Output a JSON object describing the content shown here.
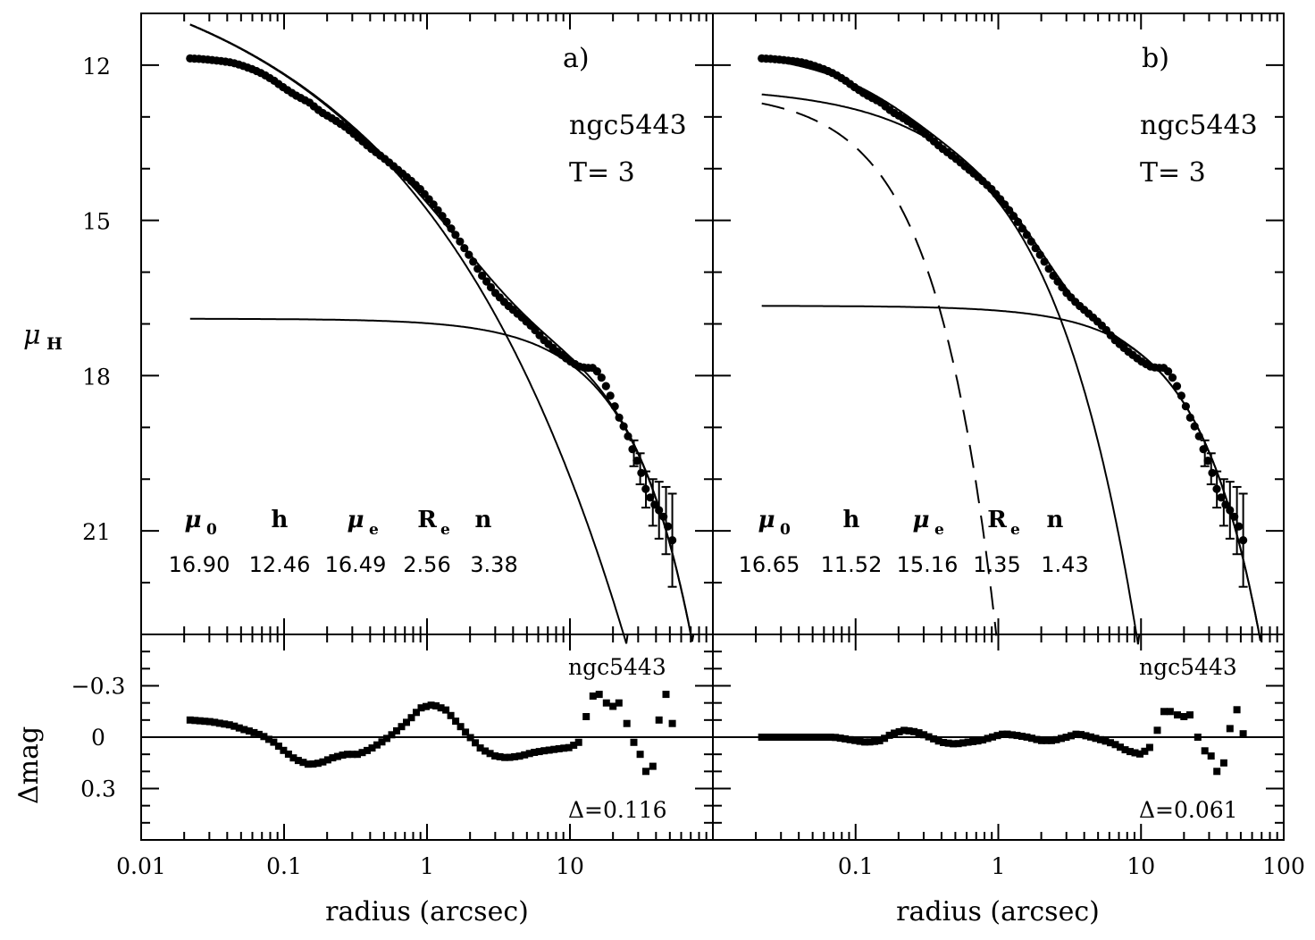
{
  "chart_data": [
    {
      "panel": "a",
      "type": "scatter",
      "title": "a)",
      "galaxy": "ngc5443",
      "type_label": "T= 3",
      "xlabel": "radius (arcsec)",
      "ylabel": "μ",
      "ylabel_sub": "H",
      "x_scale": "log",
      "xlim": [
        0.01,
        100
      ],
      "ylim": [
        23,
        11
      ],
      "x_ticks": [
        0.01,
        0.1,
        1,
        10
      ],
      "x_tick_labels": [
        "0.01",
        "0.1",
        "1",
        "10"
      ],
      "y_ticks": [
        12,
        15,
        18,
        21
      ],
      "y_tick_labels": [
        "12",
        "15",
        "18",
        "21"
      ],
      "params": {
        "headers": [
          "μ",
          "h",
          "μ",
          "R",
          "n"
        ],
        "header_subs": [
          "0",
          "",
          "e",
          "e",
          ""
        ],
        "values": [
          "16.90",
          "12.46",
          "16.49",
          "2.56",
          "3.38"
        ]
      },
      "model": {
        "disk": {
          "mu0": 16.9,
          "h": 12.46,
          "line": "solid"
        },
        "bulge": {
          "mue": 16.49,
          "re": 2.56,
          "n": 3.38,
          "line": "solid"
        }
      },
      "data_points": [
        [
          0.022,
          11.87
        ],
        [
          0.026,
          11.88
        ],
        [
          0.031,
          11.9
        ],
        [
          0.036,
          11.92
        ],
        [
          0.043,
          11.95
        ],
        [
          0.05,
          12.0
        ],
        [
          0.06,
          12.08
        ],
        [
          0.07,
          12.16
        ],
        [
          0.085,
          12.3
        ],
        [
          0.1,
          12.44
        ],
        [
          0.12,
          12.58
        ],
        [
          0.15,
          12.72
        ],
        [
          0.18,
          12.9
        ],
        [
          0.22,
          13.04
        ],
        [
          0.27,
          13.2
        ],
        [
          0.33,
          13.4
        ],
        [
          0.4,
          13.6
        ],
        [
          0.5,
          13.8
        ],
        [
          0.6,
          13.98
        ],
        [
          0.75,
          14.2
        ],
        [
          0.9,
          14.4
        ],
        [
          1.1,
          14.68
        ],
        [
          1.35,
          15.0
        ],
        [
          1.6,
          15.3
        ],
        [
          2.0,
          15.7
        ],
        [
          2.4,
          16.05
        ],
        [
          3.0,
          16.4
        ],
        [
          3.6,
          16.62
        ],
        [
          4.5,
          16.85
        ],
        [
          5.5,
          17.07
        ],
        [
          6.5,
          17.3
        ],
        [
          8.0,
          17.52
        ],
        [
          10.0,
          17.72
        ],
        [
          11.5,
          17.82
        ],
        [
          13.0,
          17.85
        ],
        [
          14.5,
          17.85
        ],
        [
          16.0,
          17.95
        ],
        [
          18.0,
          18.22
        ],
        [
          20.0,
          18.5
        ],
        [
          22.0,
          18.8
        ],
        [
          25.0,
          19.1
        ],
        [
          28.0,
          19.5
        ],
        [
          31.0,
          19.8
        ],
        [
          34.0,
          20.2
        ],
        [
          38.0,
          20.45
        ],
        [
          42.0,
          20.6
        ],
        [
          47.0,
          20.8
        ],
        [
          52.0,
          21.18
        ]
      ],
      "error_points": [
        [
          28,
          19.5,
          0.25
        ],
        [
          31,
          19.8,
          0.3
        ],
        [
          34,
          20.2,
          0.35
        ],
        [
          38,
          20.45,
          0.45
        ],
        [
          42,
          20.6,
          0.55
        ],
        [
          47,
          20.8,
          0.65
        ],
        [
          52,
          21.18,
          0.9
        ]
      ],
      "residuals": {
        "ylabel": "Δmag",
        "galaxy": "ngc5443",
        "ylim": [
          0.6,
          -0.6
        ],
        "y_ticks": [
          -0.3,
          0,
          0.3
        ],
        "y_tick_labels": [
          "−0.3",
          "0",
          "0.3"
        ],
        "delta_label": "Δ=0.116",
        "points": [
          [
            0.022,
            -0.1
          ],
          [
            0.026,
            -0.095
          ],
          [
            0.031,
            -0.09
          ],
          [
            0.036,
            -0.08
          ],
          [
            0.043,
            -0.07
          ],
          [
            0.05,
            -0.05
          ],
          [
            0.06,
            -0.03
          ],
          [
            0.07,
            -0.01
          ],
          [
            0.085,
            0.03
          ],
          [
            0.1,
            0.08
          ],
          [
            0.12,
            0.13
          ],
          [
            0.15,
            0.16
          ],
          [
            0.18,
            0.15
          ],
          [
            0.22,
            0.12
          ],
          [
            0.27,
            0.1
          ],
          [
            0.33,
            0.1
          ],
          [
            0.4,
            0.07
          ],
          [
            0.5,
            0.02
          ],
          [
            0.6,
            -0.03
          ],
          [
            0.75,
            -0.1
          ],
          [
            0.9,
            -0.17
          ],
          [
            1.1,
            -0.19
          ],
          [
            1.35,
            -0.16
          ],
          [
            1.6,
            -0.09
          ],
          [
            2.0,
            0.0
          ],
          [
            2.4,
            0.07
          ],
          [
            3.0,
            0.11
          ],
          [
            3.6,
            0.12
          ],
          [
            4.5,
            0.11
          ],
          [
            5.5,
            0.09
          ],
          [
            6.5,
            0.08
          ],
          [
            8.0,
            0.07
          ],
          [
            10.0,
            0.06
          ],
          [
            11.5,
            0.03
          ],
          [
            13.0,
            -0.12
          ],
          [
            14.5,
            -0.24
          ],
          [
            16.0,
            -0.25
          ],
          [
            18.0,
            -0.2
          ],
          [
            20.0,
            -0.18
          ],
          [
            22.0,
            -0.2
          ],
          [
            25.0,
            -0.08
          ],
          [
            28.0,
            0.03
          ],
          [
            31.0,
            0.1
          ],
          [
            34.0,
            0.2
          ],
          [
            38.0,
            0.17
          ],
          [
            42.0,
            -0.1
          ],
          [
            47.0,
            -0.25
          ],
          [
            52.0,
            -0.08
          ]
        ]
      }
    },
    {
      "panel": "b",
      "type": "scatter",
      "title": "b)",
      "galaxy": "ngc5443",
      "type_label": "T= 3",
      "xlabel": "radius (arcsec)",
      "x_scale": "log",
      "xlim": [
        0.01,
        100
      ],
      "ylim": [
        23,
        11
      ],
      "x_ticks": [
        0.1,
        1,
        10,
        100
      ],
      "x_tick_labels": [
        "0.1",
        "1",
        "10",
        "100"
      ],
      "params": {
        "headers": [
          "μ",
          "h",
          "μ",
          "R",
          "n"
        ],
        "header_subs": [
          "0",
          "",
          "e",
          "e",
          ""
        ],
        "values": [
          "16.65",
          "11.52",
          "15.16",
          "1.35",
          "1.43"
        ]
      },
      "model": {
        "disk": {
          "mu0": 16.65,
          "h": 11.52,
          "line": "solid"
        },
        "bulge": {
          "mue": 15.16,
          "re": 1.35,
          "n": 1.43,
          "line": "solid"
        },
        "nuclear": {
          "mu0": 12.5,
          "scale_arcsec": 0.1,
          "line": "dashed"
        }
      },
      "data_points": [
        [
          0.022,
          11.87
        ],
        [
          0.026,
          11.88
        ],
        [
          0.031,
          11.9
        ],
        [
          0.036,
          11.92
        ],
        [
          0.043,
          11.95
        ],
        [
          0.05,
          12.0
        ],
        [
          0.06,
          12.08
        ],
        [
          0.07,
          12.16
        ],
        [
          0.085,
          12.3
        ],
        [
          0.1,
          12.44
        ],
        [
          0.12,
          12.58
        ],
        [
          0.15,
          12.72
        ],
        [
          0.18,
          12.9
        ],
        [
          0.22,
          13.04
        ],
        [
          0.27,
          13.2
        ],
        [
          0.33,
          13.4
        ],
        [
          0.4,
          13.6
        ],
        [
          0.5,
          13.8
        ],
        [
          0.6,
          13.98
        ],
        [
          0.75,
          14.2
        ],
        [
          0.9,
          14.4
        ],
        [
          1.1,
          14.68
        ],
        [
          1.35,
          15.0
        ],
        [
          1.6,
          15.3
        ],
        [
          2.0,
          15.7
        ],
        [
          2.4,
          16.05
        ],
        [
          3.0,
          16.4
        ],
        [
          3.6,
          16.62
        ],
        [
          4.5,
          16.85
        ],
        [
          5.5,
          17.07
        ],
        [
          6.5,
          17.3
        ],
        [
          8.0,
          17.52
        ],
        [
          10.0,
          17.72
        ],
        [
          11.5,
          17.82
        ],
        [
          13.0,
          17.85
        ],
        [
          14.5,
          17.85
        ],
        [
          16.0,
          17.95
        ],
        [
          18.0,
          18.22
        ],
        [
          20.0,
          18.5
        ],
        [
          22.0,
          18.8
        ],
        [
          25.0,
          19.1
        ],
        [
          28.0,
          19.5
        ],
        [
          31.0,
          19.8
        ],
        [
          34.0,
          20.2
        ],
        [
          38.0,
          20.45
        ],
        [
          42.0,
          20.6
        ],
        [
          47.0,
          20.8
        ],
        [
          52.0,
          21.18
        ]
      ],
      "error_points": [
        [
          28,
          19.5,
          0.25
        ],
        [
          31,
          19.8,
          0.3
        ],
        [
          34,
          20.2,
          0.35
        ],
        [
          38,
          20.45,
          0.45
        ],
        [
          42,
          20.6,
          0.55
        ],
        [
          47,
          20.8,
          0.65
        ],
        [
          52,
          21.18,
          0.9
        ]
      ],
      "residuals": {
        "galaxy": "ngc5443",
        "ylim": [
          0.6,
          -0.6
        ],
        "y_ticks": [
          -0.3,
          0,
          0.3
        ],
        "delta_label": "Δ=0.061",
        "points": [
          [
            0.022,
            0.0
          ],
          [
            0.026,
            0.0
          ],
          [
            0.031,
            0.0
          ],
          [
            0.036,
            0.0
          ],
          [
            0.043,
            0.0
          ],
          [
            0.05,
            0.0
          ],
          [
            0.06,
            0.0
          ],
          [
            0.07,
            0.0
          ],
          [
            0.085,
            0.01
          ],
          [
            0.1,
            0.02
          ],
          [
            0.12,
            0.03
          ],
          [
            0.15,
            0.02
          ],
          [
            0.18,
            -0.02
          ],
          [
            0.22,
            -0.04
          ],
          [
            0.27,
            -0.03
          ],
          [
            0.33,
            0.0
          ],
          [
            0.4,
            0.03
          ],
          [
            0.5,
            0.04
          ],
          [
            0.6,
            0.03
          ],
          [
            0.75,
            0.02
          ],
          [
            0.9,
            0.0
          ],
          [
            1.1,
            -0.02
          ],
          [
            1.35,
            -0.01
          ],
          [
            1.6,
            0.0
          ],
          [
            2.0,
            0.02
          ],
          [
            2.4,
            0.02
          ],
          [
            3.0,
            0.0
          ],
          [
            3.6,
            -0.02
          ],
          [
            4.5,
            0.0
          ],
          [
            5.5,
            0.02
          ],
          [
            6.5,
            0.04
          ],
          [
            8.0,
            0.08
          ],
          [
            10.0,
            0.1
          ],
          [
            11.5,
            0.06
          ],
          [
            13.0,
            -0.04
          ],
          [
            14.5,
            -0.15
          ],
          [
            16.0,
            -0.15
          ],
          [
            18.0,
            -0.13
          ],
          [
            20.0,
            -0.12
          ],
          [
            22.0,
            -0.13
          ],
          [
            25.0,
            0.0
          ],
          [
            28.0,
            0.08
          ],
          [
            31.0,
            0.11
          ],
          [
            34.0,
            0.2
          ],
          [
            38.0,
            0.15
          ],
          [
            42.0,
            -0.05
          ],
          [
            47.0,
            -0.16
          ],
          [
            52.0,
            -0.02
          ]
        ]
      }
    }
  ]
}
